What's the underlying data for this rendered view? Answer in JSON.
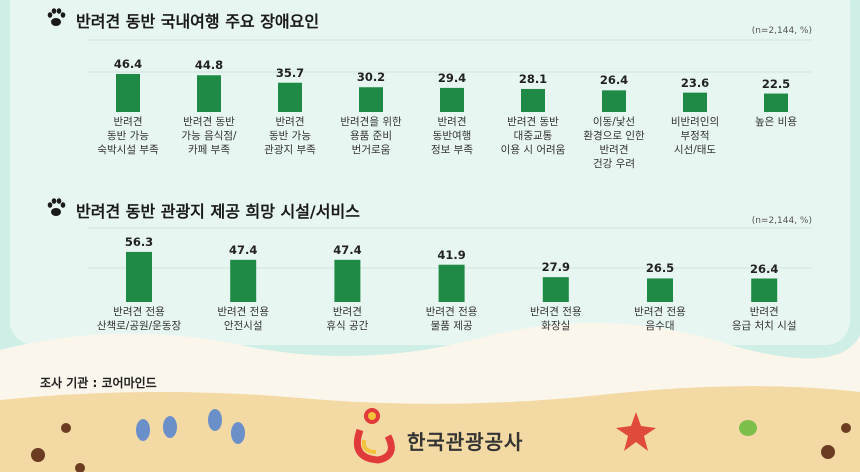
{
  "chart_data": [
    {
      "type": "bar",
      "title": "반려견 동반 국내여행 주요 장애요인",
      "note": "(n=2,144, %)",
      "color": "#1e8a45",
      "categories": [
        "반려견\n동반 가능\n숙박시설 부족",
        "반려견 동반\n가능 음식점/\n카페 부족",
        "반려견\n동반 가능\n관광지 부족",
        "반려견을 위한\n용품 준비\n번거로움",
        "반려견\n동반여행\n정보 부족",
        "반려견 동반\n대중교통\n이용 시 어려움",
        "이동/낯선\n환경으로 인한\n반려견\n건강 우려",
        "비반려인의\n부정적\n시선/태도",
        "높은 비용"
      ],
      "values": [
        46.4,
        44.8,
        35.7,
        30.2,
        29.4,
        28.1,
        26.4,
        23.6,
        22.5
      ]
    },
    {
      "type": "bar",
      "title": "반려견 동반 관광지 제공 희망 시설/서비스",
      "note": "(n=2,144, %)",
      "color": "#1e8a45",
      "categories": [
        "반려견 전용\n산책로/공원/운동장",
        "반려견 전용\n안전시설",
        "반려견\n휴식 공간",
        "반려견 전용\n물품 제공",
        "반려견 전용\n화장실",
        "반려견 전용\n음수대",
        "반려견\n응급 처치 시설"
      ],
      "values": [
        56.3,
        47.4,
        47.4,
        41.9,
        27.9,
        26.5,
        26.4
      ]
    }
  ],
  "footer": {
    "source": "조사 기관 : 코어마인드",
    "logo": "한국관광공사"
  }
}
